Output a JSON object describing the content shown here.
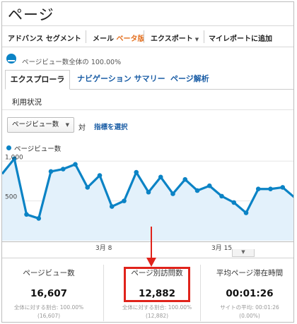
{
  "page": {
    "title": "ページ"
  },
  "toolbar": {
    "advanced_segment": "アドバンス セグメント",
    "email": "メール",
    "beta": "ベータ版",
    "export": "エクスポート",
    "add_to_report": "マイレポートに追加"
  },
  "segment": {
    "label": "ページビュー数全体の 100.00%"
  },
  "tabs": [
    {
      "label": "エクスプローラ"
    },
    {
      "label": "ナビゲーション サマリー"
    },
    {
      "label": "ページ解析"
    }
  ],
  "subtab": {
    "label": "利用状況"
  },
  "controls": {
    "metric_dropdown": "ページビュー数",
    "vs": "対",
    "choose_metric": "指標を選択"
  },
  "legend": {
    "label": "ページビュー数"
  },
  "chart_data": {
    "type": "area",
    "series": [
      {
        "name": "ページビュー数",
        "values": [
          840,
          1030,
          330,
          280,
          870,
          900,
          960,
          670,
          820,
          430,
          500,
          860,
          610,
          800,
          590,
          770,
          630,
          690,
          560,
          480,
          350,
          650,
          650,
          670,
          540
        ]
      }
    ],
    "y_ticks": [
      "1,000",
      "500"
    ],
    "x_ticks": [
      "3月 8",
      "3月 15"
    ],
    "ylim": [
      0,
      1100
    ],
    "color": "#0b83c5",
    "fill": "#e3f1fb"
  },
  "metrics": [
    {
      "title": "ページビュー数",
      "value": "16,607",
      "sub1": "全体に対する割合: 100.00%",
      "sub2": "(16,607)"
    },
    {
      "title": "ページ別訪問数",
      "value": "12,882",
      "sub1": "全体に対する割合: 100.00%",
      "sub2": "(12,882)"
    },
    {
      "title": "平均ページ滞在時間",
      "value": "00:01:26",
      "sub1": "サイトの平均: 00:01:26",
      "sub2": "(0.00%)"
    }
  ],
  "annotation": {
    "color": "#e0231b"
  }
}
